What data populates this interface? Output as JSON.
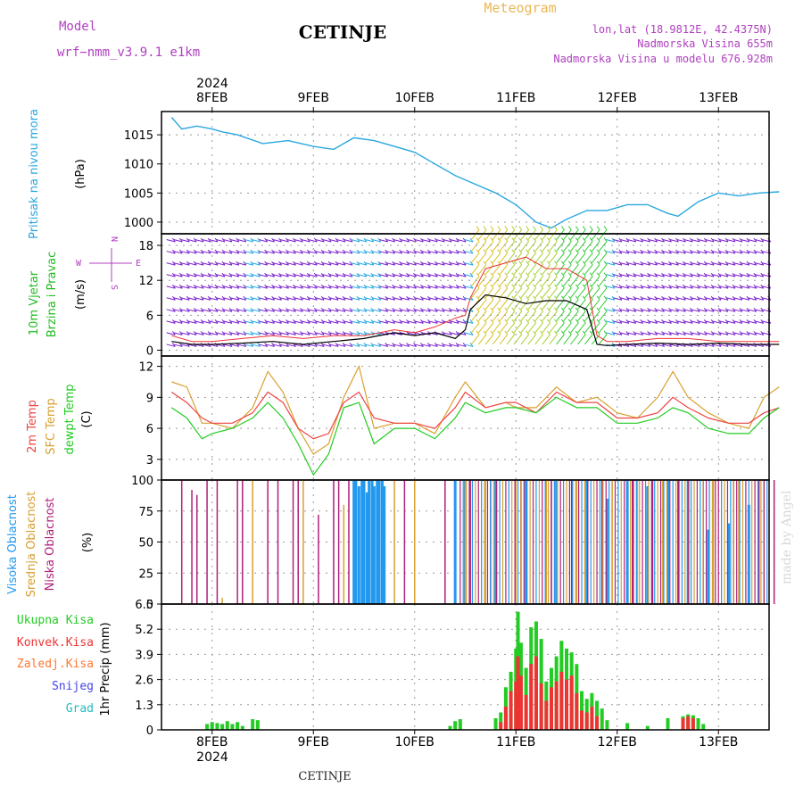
{
  "header": {
    "model_label": "Model",
    "model_name": "wrf−nmm_v3.9.1 e1km",
    "station": "CETINJE",
    "product": "Meteogram",
    "lonlat": "lon,lat (18.9812E, 42.4375N)",
    "altitude": "Nadmorska Visina 655m",
    "model_altitude": "Nadmorska Visina u modelu 676.928m"
  },
  "footer": {
    "station": "CETINJE",
    "credit": "made by Angel"
  },
  "time_axis": {
    "year": "2024",
    "day_labels": [
      "8FEB",
      "9FEB",
      "10FEB",
      "11FEB",
      "12FEB",
      "13FEB"
    ]
  },
  "colors": {
    "pressure": "#2aa7e0",
    "wind_text": "#22bb22",
    "wind_barbs": "#7a22cc",
    "wind_speed": "#000000",
    "wind_gust": "#ee3333",
    "temp_2m": "#ee4444",
    "temp_sfc": "#d8a030",
    "dewpoint": "#22cc22",
    "cloud_high": "#2299ee",
    "cloud_mid": "#d8a030",
    "cloud_low": "#b0207a",
    "precip_total": "#22cc22",
    "precip_conv": "#ee3333",
    "precip_freezing": "#ff7733",
    "snow": "#4444ee",
    "hail": "#22bbbb"
  },
  "chart_data": [
    {
      "type": "line",
      "panel": "pressure",
      "ylabel": [
        "Pritisak na nivou mora",
        "(hPa)"
      ],
      "yticks": [
        1000,
        1005,
        1010,
        1015
      ],
      "ylim": [
        998,
        1019
      ],
      "x_days": [
        7.6,
        7.7,
        7.85,
        8.0,
        8.1,
        8.25,
        8.5,
        8.75,
        9.0,
        9.2,
        9.4,
        9.6,
        9.8,
        10.0,
        10.2,
        10.4,
        10.6,
        10.8,
        11.0,
        11.2,
        11.35,
        11.5,
        11.7,
        11.9,
        12.1,
        12.3,
        12.5,
        12.6,
        12.8,
        13.0,
        13.2,
        13.4,
        13.6
      ],
      "series": [
        {
          "values": [
            1018,
            1016,
            1016.5,
            1016,
            1015.5,
            1015,
            1013.5,
            1014,
            1013,
            1012.5,
            1014.5,
            1014,
            1013,
            1012,
            1010,
            1008,
            1006.5,
            1005,
            1003,
            1000,
            999,
            1000.5,
            1002,
            1002,
            1003,
            1003,
            1001.5,
            1001,
            1003.5,
            1005,
            1004.5,
            1005,
            1005.2
          ]
        }
      ]
    },
    {
      "type": "line",
      "panel": "wind",
      "ylabel": [
        "10m Vjetar",
        "Brzina i Pravac",
        "(m/s)"
      ],
      "direction_legend": {
        "n": "N",
        "s": "S",
        "e": "E",
        "w": "W"
      },
      "yticks": [
        0,
        6,
        12,
        18
      ],
      "ylim": [
        -1,
        20
      ],
      "x_days": [
        7.6,
        7.8,
        8.0,
        8.3,
        8.6,
        8.9,
        9.2,
        9.5,
        9.8,
        10.0,
        10.2,
        10.4,
        10.5,
        10.55,
        10.7,
        10.9,
        11.1,
        11.3,
        11.5,
        11.7,
        11.8,
        11.9,
        12.1,
        12.4,
        12.7,
        13.0,
        13.3,
        13.6
      ],
      "series": [
        {
          "name": "speed",
          "values": [
            1.5,
            1.0,
            1.0,
            1.2,
            1.5,
            1.0,
            1.5,
            2.0,
            3.0,
            2.5,
            3.0,
            2.0,
            3.5,
            7.0,
            9.5,
            9.0,
            8.0,
            8.5,
            8.5,
            7.0,
            1.0,
            0.8,
            1.0,
            1.2,
            1.0,
            1.2,
            1.0,
            1.0
          ]
        },
        {
          "name": "gust",
          "values": [
            2.5,
            1.5,
            1.5,
            2.0,
            2.5,
            2.0,
            2.5,
            2.5,
            3.5,
            3.0,
            4.0,
            5.5,
            6.0,
            9.0,
            14.0,
            15.0,
            16.0,
            14.0,
            14.0,
            12.0,
            2.5,
            1.5,
            1.5,
            2.0,
            2.0,
            1.5,
            1.5,
            1.5
          ]
        }
      ]
    },
    {
      "type": "line",
      "panel": "temperature",
      "ylabel": [
        "2m Temp",
        "SFC Temp",
        "dewpt Temp",
        "(C)"
      ],
      "yticks": [
        3,
        6,
        9,
        12
      ],
      "ylim": [
        1,
        13
      ],
      "x_days": [
        7.6,
        7.75,
        7.9,
        8.0,
        8.2,
        8.4,
        8.55,
        8.7,
        8.85,
        9.0,
        9.15,
        9.3,
        9.45,
        9.6,
        9.8,
        10.0,
        10.2,
        10.4,
        10.5,
        10.7,
        10.9,
        11.0,
        11.2,
        11.4,
        11.6,
        11.8,
        12.0,
        12.2,
        12.4,
        12.55,
        12.7,
        12.9,
        13.1,
        13.3,
        13.45,
        13.6
      ],
      "series": [
        {
          "name": "2m Temp",
          "values": [
            9.5,
            8.5,
            7.0,
            6.5,
            6.5,
            7.5,
            9.5,
            8.5,
            6.0,
            5.0,
            5.5,
            8.5,
            9.5,
            7.0,
            6.5,
            6.5,
            6.0,
            8.0,
            9.5,
            8.0,
            8.5,
            8.5,
            7.5,
            9.5,
            8.5,
            8.5,
            7.0,
            7.0,
            7.5,
            9.0,
            8.0,
            7.0,
            6.5,
            6.5,
            7.5,
            8.0
          ]
        },
        {
          "name": "SFC Temp",
          "values": [
            10.5,
            10.0,
            6.5,
            6.5,
            6.0,
            8.0,
            11.5,
            9.5,
            6.0,
            3.5,
            4.5,
            9.0,
            12.0,
            6.0,
            6.5,
            6.5,
            5.5,
            9.0,
            10.5,
            8.0,
            8.5,
            8.0,
            8.0,
            10.0,
            8.5,
            9.0,
            7.5,
            7.0,
            9.0,
            11.5,
            9.0,
            7.5,
            6.5,
            6.0,
            9.0,
            10.0
          ]
        },
        {
          "name": "dewpt Temp",
          "values": [
            8.0,
            7.0,
            5.0,
            5.5,
            6.0,
            7.0,
            8.5,
            7.0,
            4.5,
            1.5,
            3.5,
            8.0,
            8.5,
            4.5,
            6.0,
            6.0,
            5.0,
            7.0,
            8.5,
            7.5,
            8.0,
            8.0,
            7.5,
            9.0,
            8.0,
            8.0,
            6.5,
            6.5,
            7.0,
            8.0,
            7.5,
            6.0,
            5.5,
            5.5,
            7.0,
            8.0
          ]
        }
      ]
    },
    {
      "type": "bar",
      "panel": "cloud",
      "ylabel": [
        "Visoka Oblacnost",
        "Srednja Oblacnost",
        "Niska Oblacnost",
        "(%)"
      ],
      "yticks": [
        0,
        25,
        50,
        75,
        100
      ],
      "ylim": [
        0,
        100
      ],
      "series": [
        {
          "name": "Visoka Oblacnost",
          "x_days": [
            9.4,
            9.42,
            9.45,
            9.48,
            9.5,
            9.53,
            9.55,
            9.58,
            9.6,
            9.63,
            9.65,
            9.68,
            9.7,
            10.4,
            10.5,
            10.8,
            11.1,
            11.4,
            11.7,
            11.9,
            12.1,
            12.3,
            12.5,
            12.7,
            12.9,
            13.1,
            13.3
          ],
          "values": [
            100,
            100,
            95,
            100,
            100,
            90,
            100,
            100,
            95,
            100,
            100,
            100,
            95,
            100,
            100,
            100,
            100,
            100,
            100,
            85,
            100,
            95,
            100,
            100,
            60,
            65,
            80
          ]
        },
        {
          "name": "Srednja Oblacnost",
          "x_days": [
            8.1,
            8.4,
            8.9,
            9.3,
            9.8,
            10.0,
            10.5,
            10.7,
            11.0,
            11.3,
            11.6,
            11.95,
            12.2,
            12.45,
            12.7,
            12.95,
            13.2,
            13.45
          ],
          "values": [
            5,
            100,
            100,
            80,
            100,
            100,
            100,
            100,
            100,
            100,
            100,
            100,
            100,
            100,
            100,
            100,
            100,
            100
          ]
        },
        {
          "name": "Niska Oblacnost",
          "x_days": [
            7.7,
            7.8,
            7.85,
            7.95,
            8.05,
            8.25,
            8.3,
            8.55,
            8.65,
            8.8,
            8.85,
            9.05,
            9.2,
            9.25,
            9.35,
            9.9,
            10.3,
            10.55,
            10.75,
            11.05,
            11.35,
            11.55,
            11.85,
            12.15,
            12.35,
            12.6,
            12.85,
            13.15,
            13.4,
            13.55
          ],
          "values": [
            100,
            92,
            88,
            100,
            100,
            100,
            100,
            100,
            100,
            100,
            100,
            72,
            100,
            100,
            100,
            100,
            100,
            100,
            100,
            100,
            100,
            100,
            100,
            100,
            100,
            100,
            100,
            100,
            100,
            100
          ]
        }
      ]
    },
    {
      "type": "bar",
      "panel": "precipitation",
      "ylabel": [
        "1hr Precip (mm)"
      ],
      "legend": [
        "Ukupna Kisa",
        "Konvek.Kisa",
        "Zaledj.Kisa",
        "Snijeg",
        "Grad"
      ],
      "yticks": [
        0,
        1.3,
        2.6,
        3.9,
        5.2,
        6.5
      ],
      "ylim": [
        0,
        6.5
      ],
      "series": [
        {
          "name": "Ukupna Kisa",
          "x_days": [
            7.95,
            8.0,
            8.05,
            8.1,
            8.15,
            8.2,
            8.25,
            8.3,
            8.4,
            8.45,
            10.35,
            10.4,
            10.45,
            10.8,
            10.85,
            10.9,
            10.95,
            11.0,
            11.02,
            11.05,
            11.1,
            11.15,
            11.2,
            11.25,
            11.3,
            11.35,
            11.4,
            11.45,
            11.5,
            11.55,
            11.6,
            11.65,
            11.7,
            11.75,
            11.8,
            11.85,
            11.9,
            12.1,
            12.3,
            12.5,
            12.65,
            12.7,
            12.75,
            12.8,
            12.85
          ],
          "values": [
            0.3,
            0.4,
            0.35,
            0.3,
            0.45,
            0.3,
            0.4,
            0.2,
            0.55,
            0.5,
            0.2,
            0.45,
            0.55,
            0.6,
            0.9,
            2.2,
            3.0,
            4.2,
            6.1,
            4.5,
            3.2,
            5.3,
            5.6,
            4.7,
            2.5,
            3.2,
            3.8,
            4.6,
            4.2,
            4.0,
            3.4,
            2.0,
            1.6,
            1.9,
            1.5,
            1.1,
            0.5,
            0.35,
            0.2,
            0.6,
            0.7,
            0.8,
            0.75,
            0.6,
            0.3
          ]
        },
        {
          "name": "Konvek.Kisa",
          "x_days": [
            10.85,
            10.9,
            10.95,
            11.0,
            11.02,
            11.05,
            11.1,
            11.15,
            11.2,
            11.25,
            11.3,
            11.35,
            11.4,
            11.45,
            11.5,
            11.55,
            11.6,
            11.65,
            11.7,
            11.75,
            11.8,
            12.65,
            12.7,
            12.75
          ],
          "values": [
            0.4,
            1.2,
            2.0,
            2.5,
            3.8,
            2.8,
            1.8,
            3.4,
            3.8,
            2.4,
            1.5,
            2.2,
            2.5,
            3.0,
            2.6,
            2.8,
            1.9,
            1.0,
            0.9,
            1.2,
            0.7,
            0.6,
            0.7,
            0.6
          ]
        }
      ]
    }
  ]
}
